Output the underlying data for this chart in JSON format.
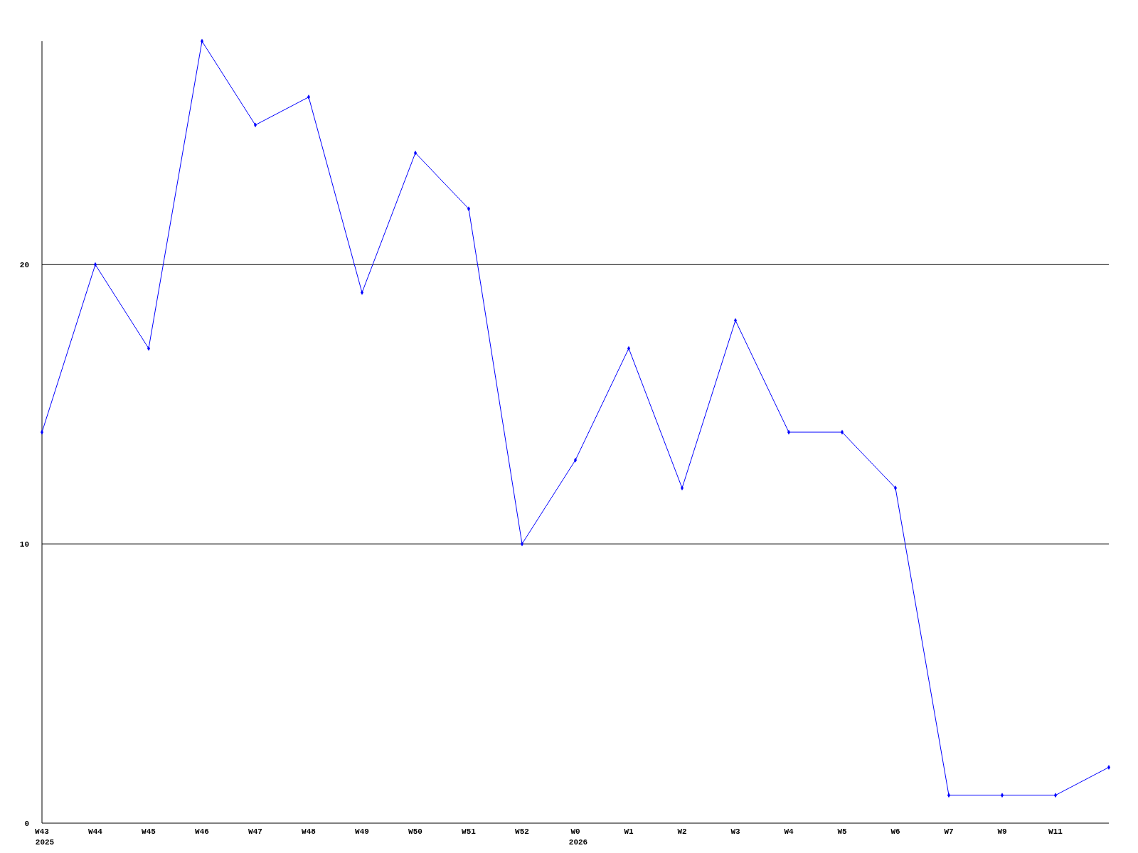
{
  "chart_data": {
    "type": "line",
    "categories": [
      "W43\n2025",
      "W44",
      "W45",
      "W46",
      "W47",
      "W48",
      "W49",
      "W50",
      "W51",
      "W52",
      "W0\n2026",
      "W1",
      "W2",
      "W3",
      "W4",
      "W5",
      "W6",
      "W7",
      "W9",
      "W11",
      null
    ],
    "series": [
      {
        "color": "#0000ff",
        "values": [
          14,
          20,
          17,
          28,
          25,
          26,
          19,
          24,
          22,
          10,
          13,
          17,
          12,
          18,
          14,
          14,
          12,
          1,
          1,
          1,
          2
        ]
      }
    ],
    "ylim": [
      0,
      28
    ],
    "yticks": [
      0,
      10,
      20
    ],
    "grid": "y",
    "marker": "diamond",
    "line_style": "solid"
  }
}
